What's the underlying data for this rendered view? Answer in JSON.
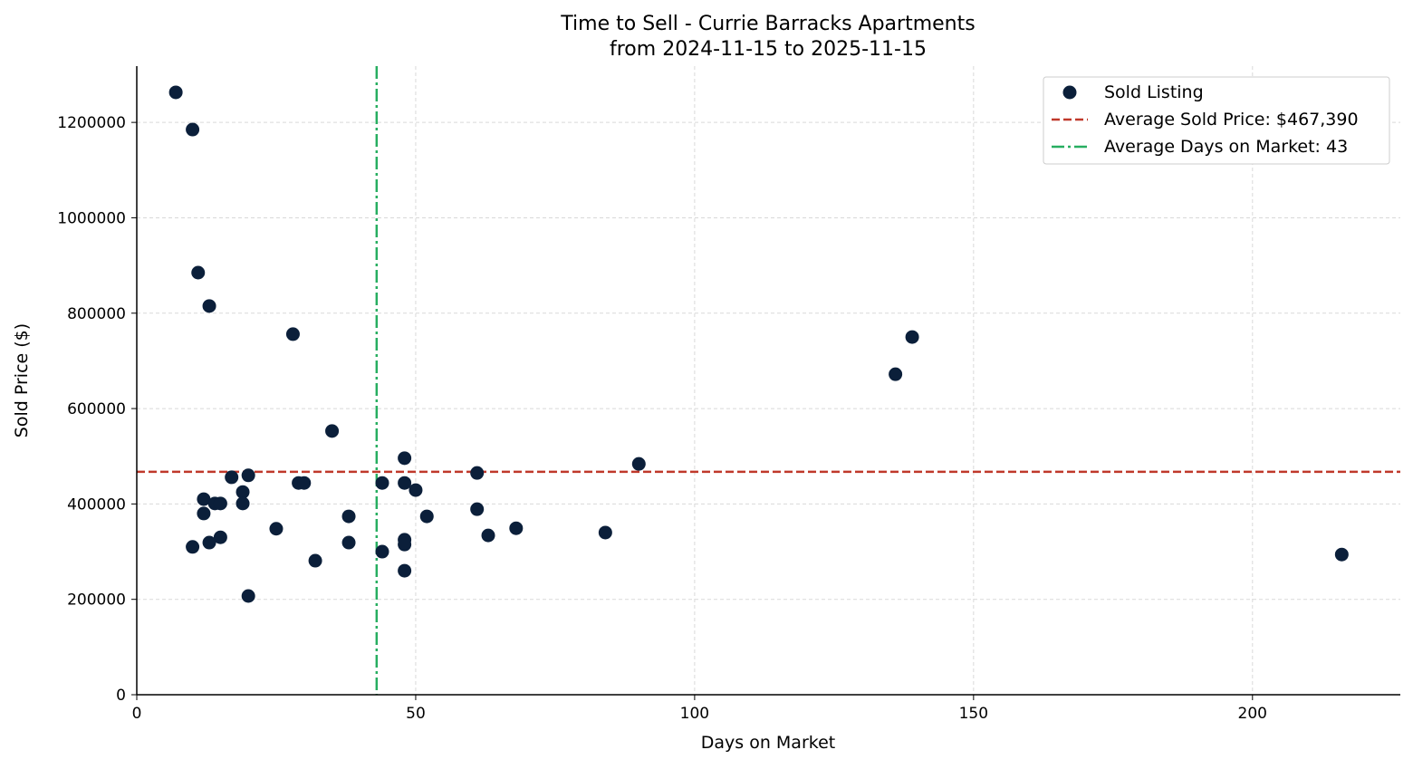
{
  "chart_data": {
    "type": "scatter",
    "title": "Time to Sell - Currie Barracks Apartments",
    "subtitle": "from 2024-11-15 to 2025-11-15",
    "xlabel": "Days on Market",
    "ylabel": "Sold Price ($)",
    "xlim": [
      0,
      226.5
    ],
    "ylim": [
      0,
      1318000
    ],
    "xticks": [
      0,
      50,
      100,
      150,
      200
    ],
    "yticks": [
      0,
      200000,
      400000,
      600000,
      800000,
      1000000,
      1200000
    ],
    "grid": true,
    "legend_position": "top-right",
    "colors": {
      "points": "#0b1f3a",
      "avg_price": "#c0392b",
      "avg_days": "#27ae60"
    },
    "series": [
      {
        "name": "Sold Listing",
        "points": [
          [
            7,
            1263000
          ],
          [
            10,
            1185000
          ],
          [
            11,
            885000
          ],
          [
            13,
            815000
          ],
          [
            28,
            756000
          ],
          [
            35,
            553000
          ],
          [
            48,
            496000
          ],
          [
            17,
            456000
          ],
          [
            20,
            460000
          ],
          [
            29,
            444000
          ],
          [
            30,
            444000
          ],
          [
            44,
            444000
          ],
          [
            48,
            444000
          ],
          [
            50,
            429000
          ],
          [
            19,
            425000
          ],
          [
            12,
            410000
          ],
          [
            14,
            401000
          ],
          [
            15,
            401000
          ],
          [
            19,
            401000
          ],
          [
            61,
            465000
          ],
          [
            90,
            484000
          ],
          [
            12,
            380000
          ],
          [
            38,
            374000
          ],
          [
            52,
            374000
          ],
          [
            61,
            389000
          ],
          [
            25,
            348000
          ],
          [
            68,
            349000
          ],
          [
            84,
            340000
          ],
          [
            63,
            334000
          ],
          [
            15,
            330000
          ],
          [
            13,
            319000
          ],
          [
            38,
            319000
          ],
          [
            48,
            325000
          ],
          [
            48,
            315000
          ],
          [
            10,
            310000
          ],
          [
            44,
            300000
          ],
          [
            32,
            281000
          ],
          [
            48,
            260000
          ],
          [
            20,
            207000
          ],
          [
            136,
            672000
          ],
          [
            139,
            750000
          ],
          [
            216,
            294000
          ]
        ]
      }
    ],
    "reference_lines": [
      {
        "name": "Average Sold Price: $467,390",
        "axis": "y",
        "value": 467390,
        "style": "dashed"
      },
      {
        "name": "Average Days on Market: 43",
        "axis": "x",
        "value": 43,
        "style": "dashdot"
      }
    ]
  }
}
